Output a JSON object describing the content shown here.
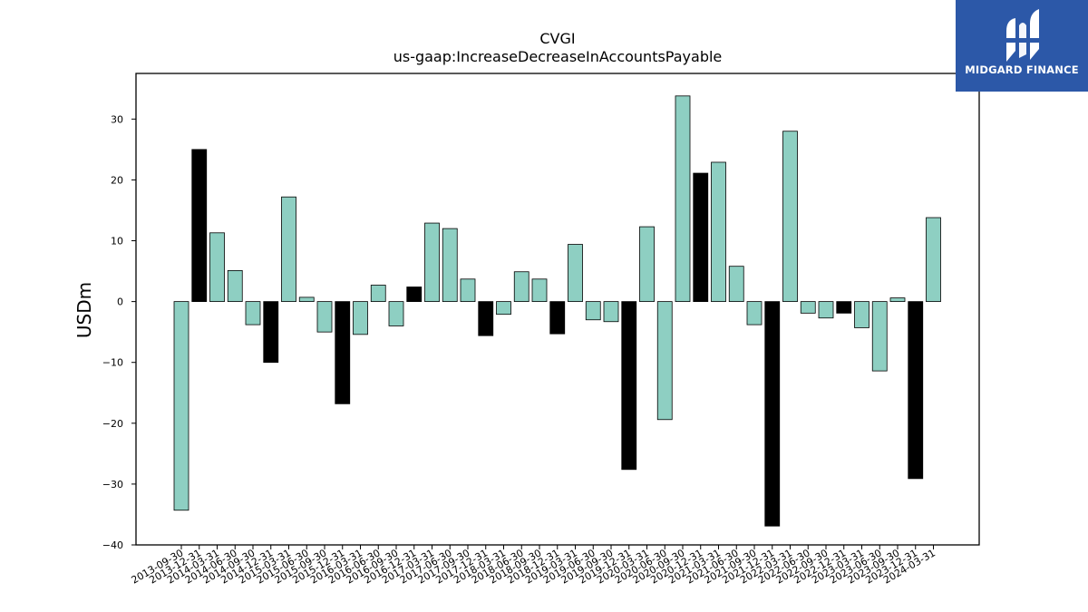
{
  "brand": {
    "name": "MIDGARD FINANCE"
  },
  "chart_data": {
    "type": "bar",
    "title": "CVGI",
    "subtitle": "us-gaap:IncreaseDecreaseInAccountsPayable",
    "xlabel": "",
    "ylabel": "USDm",
    "ylim": [
      -40,
      37.5
    ],
    "yticks": [
      -40,
      -30,
      -20,
      -10,
      0,
      10,
      20,
      30
    ],
    "ytick_labels": [
      "−40",
      "−30",
      "−20",
      "−10",
      "0",
      "10",
      "20",
      "30"
    ],
    "grid": false,
    "colors": {
      "default": "#8ecfc2",
      "highlight": "#000000",
      "edge": "#000000"
    },
    "categories": [
      "2013-09-30",
      "2013-12-31",
      "2014-03-31",
      "2014-06-30",
      "2014-09-30",
      "2014-12-31",
      "2015-03-31",
      "2015-06-30",
      "2015-09-30",
      "2015-12-31",
      "2016-03-31",
      "2016-06-30",
      "2016-09-30",
      "2016-12-31",
      "2017-03-31",
      "2017-06-30",
      "2017-09-30",
      "2017-12-31",
      "2018-03-31",
      "2018-06-30",
      "2018-09-30",
      "2018-12-31",
      "2019-03-31",
      "2019-06-30",
      "2019-09-30",
      "2019-12-31",
      "2020-03-31",
      "2020-06-30",
      "2020-09-30",
      "2020-12-31",
      "2021-03-31",
      "2021-06-30",
      "2021-09-30",
      "2021-12-31",
      "2022-03-31",
      "2022-06-30",
      "2022-09-30",
      "2022-12-31",
      "2023-03-31",
      "2023-06-30",
      "2023-09-30",
      "2023-12-31",
      "2024-03-31"
    ],
    "values": [
      -34.3,
      25.0,
      11.3,
      5.1,
      -3.8,
      -10.0,
      17.2,
      0.7,
      -5.0,
      -16.8,
      -5.4,
      2.7,
      -4.0,
      2.4,
      12.9,
      12.0,
      3.7,
      -5.6,
      -2.1,
      4.9,
      3.7,
      -5.3,
      9.4,
      -3.0,
      -3.3,
      -27.6,
      12.3,
      -19.4,
      33.8,
      21.1,
      22.9,
      5.8,
      -3.8,
      -36.9,
      28.0,
      -1.9,
      -2.7,
      -1.9,
      -4.3,
      -11.4,
      0.6,
      -29.1,
      13.8
    ],
    "highlight": [
      false,
      true,
      false,
      false,
      false,
      true,
      false,
      false,
      false,
      true,
      false,
      false,
      false,
      true,
      false,
      false,
      false,
      true,
      false,
      false,
      false,
      true,
      false,
      false,
      false,
      true,
      false,
      false,
      false,
      true,
      false,
      false,
      false,
      true,
      false,
      false,
      false,
      true,
      false,
      false,
      false,
      true,
      false
    ]
  }
}
